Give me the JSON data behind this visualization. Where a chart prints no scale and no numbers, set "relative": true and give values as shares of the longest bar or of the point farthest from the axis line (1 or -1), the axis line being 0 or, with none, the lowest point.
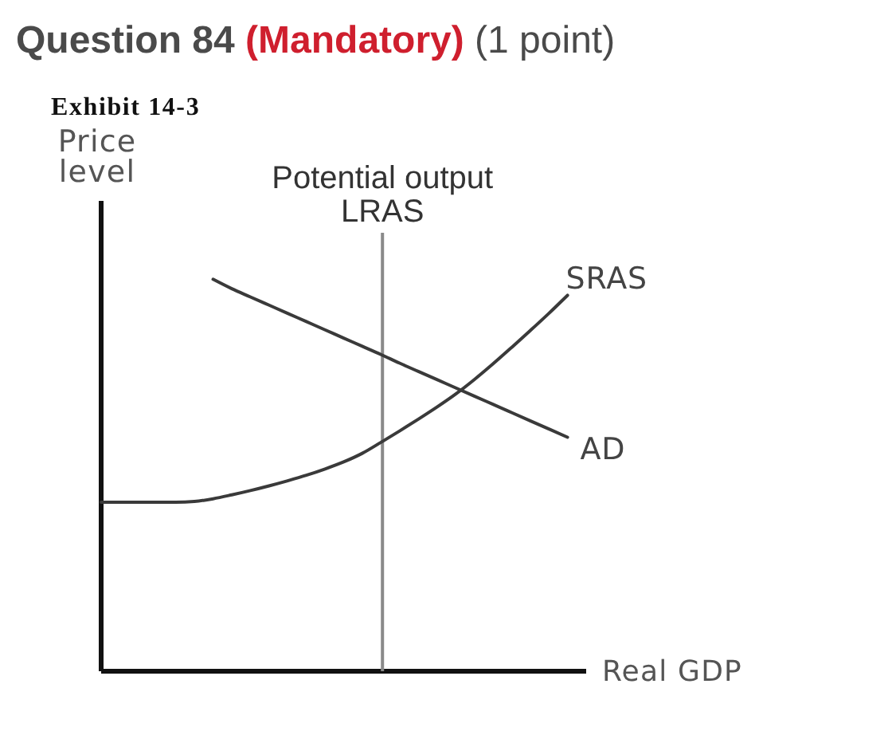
{
  "chart_data": {
    "type": "line",
    "title": "Question 84 (Mandatory) (1 point)",
    "subtitle": "Exhibit 14-3",
    "xlabel": "Real GDP",
    "ylabel": "Price level",
    "relative": true,
    "categories": [
      null,
      null,
      null,
      null,
      null,
      null,
      null,
      null,
      null,
      null,
      null,
      null,
      null,
      null,
      null,
      null,
      null,
      null,
      null,
      null,
      null,
      null,
      null,
      null,
      null,
      null,
      null
    ],
    "series": [
      {
        "name": "SRAS",
        "color": "#3a3a3a",
        "values": [
          0.431,
          0.431,
          0.431,
          0.431,
          0.431,
          0.433,
          0.44,
          0.45,
          0.461,
          0.473,
          0.486,
          0.5,
          0.516,
          0.534,
          0.556,
          0.584,
          0.613,
          0.643,
          0.674,
          0.707,
          0.744,
          0.784,
          0.826,
          0.869,
          0.913,
          0.959,
          null
        ]
      },
      {
        "name": "AD",
        "color": "#3a3a3a",
        "values": [
          null,
          null,
          null,
          null,
          null,
          null,
          1,
          0.976,
          0.955,
          0.934,
          0.913,
          0.892,
          0.871,
          0.85,
          0.829,
          0.808,
          0.786,
          0.765,
          0.744,
          0.723,
          0.702,
          0.681,
          0.66,
          0.639,
          0.618,
          0.597,
          null
        ]
      }
    ],
    "annotations": [
      "Potential output LRAS"
    ],
    "legend": false,
    "line_style": "solid"
  }
}
